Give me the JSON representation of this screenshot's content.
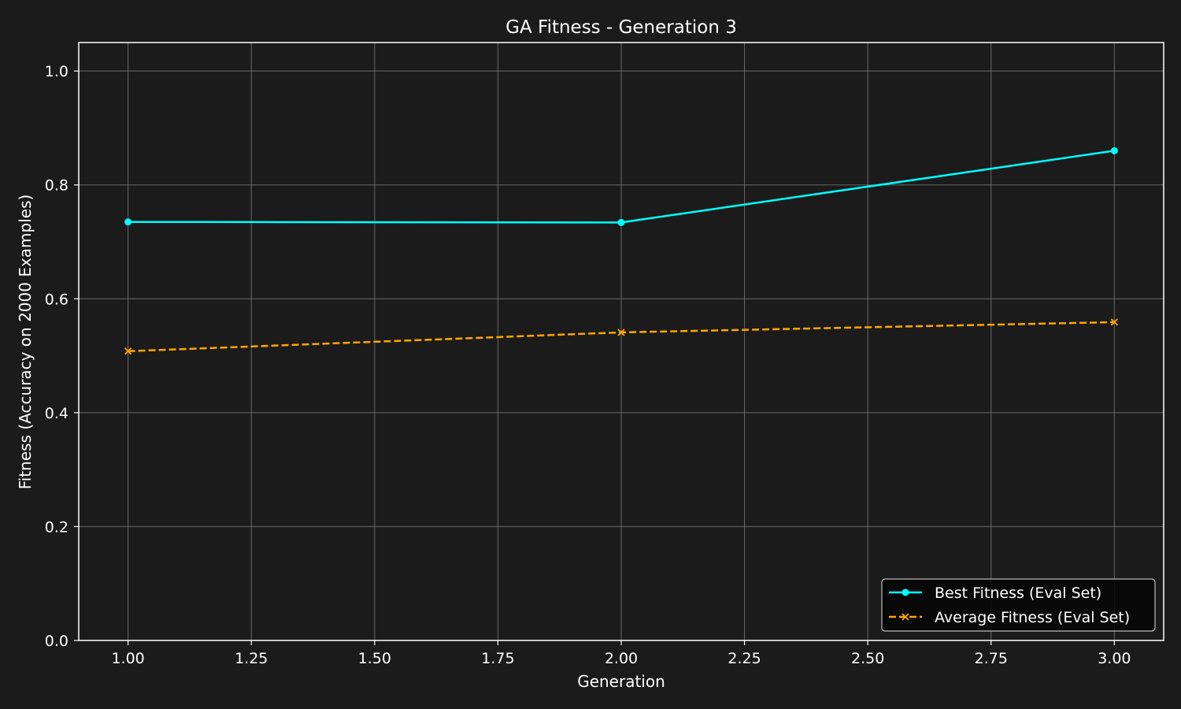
{
  "chart_data": {
    "type": "line",
    "title": "GA Fitness - Generation 3",
    "xlabel": "Generation",
    "ylabel": "Fitness (Accuracy on 2000 Examples)",
    "xlim": [
      0.9,
      3.1
    ],
    "ylim": [
      0.0,
      1.05
    ],
    "x_ticks": [
      1.0,
      1.25,
      1.5,
      1.75,
      2.0,
      2.25,
      2.5,
      2.75,
      3.0
    ],
    "x_tick_labels": [
      "1.00",
      "1.25",
      "1.50",
      "1.75",
      "2.00",
      "2.25",
      "2.50",
      "2.75",
      "3.00"
    ],
    "y_ticks": [
      0.0,
      0.2,
      0.4,
      0.6,
      0.8,
      1.0
    ],
    "y_tick_labels": [
      "0.0",
      "0.2",
      "0.4",
      "0.6",
      "0.8",
      "1.0"
    ],
    "grid": true,
    "legend_position": "lower-right",
    "x": [
      1,
      2,
      3
    ],
    "series": [
      {
        "name": "Best Fitness (Eval Set)",
        "values": [
          0.735,
          0.734,
          0.86
        ],
        "color": "#00ffff",
        "line_style": "solid",
        "marker": "circle"
      },
      {
        "name": "Average Fitness (Eval Set)",
        "values": [
          0.508,
          0.541,
          0.559
        ],
        "color": "#ffa500",
        "line_style": "dashed",
        "marker": "x"
      }
    ]
  },
  "colors": {
    "background": "#1b1b1b",
    "text": "#ffffff",
    "grid": "#808080",
    "legend_background": "#050505"
  }
}
